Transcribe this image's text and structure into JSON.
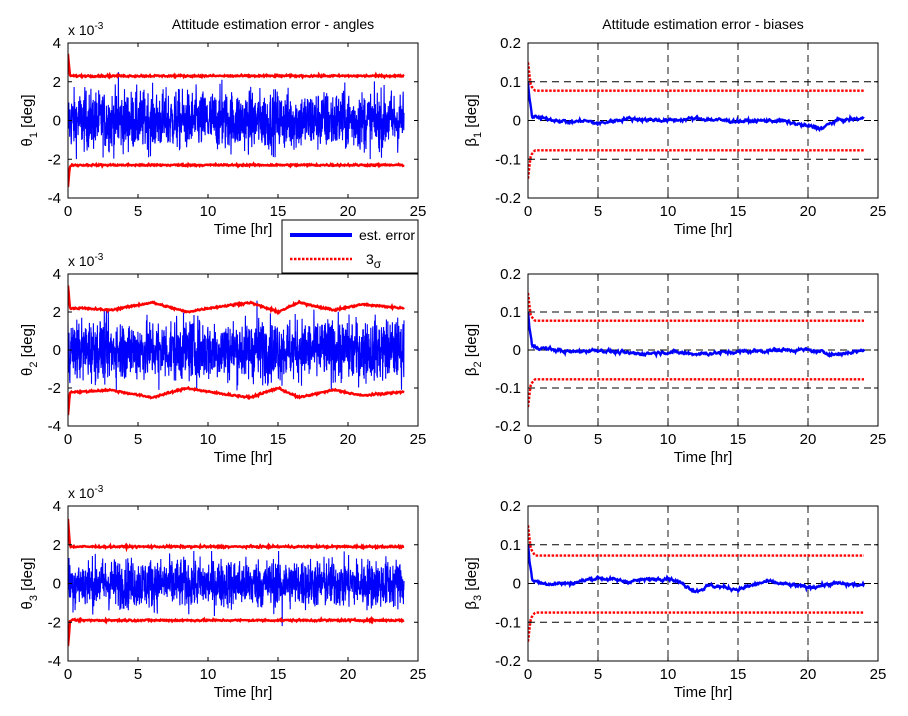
{
  "chart_data": [
    {
      "type": "line",
      "title": "Attitude estimation error - angles",
      "exponent": {
        "base": "x 10",
        "power": "-3"
      },
      "xlabel": "Time [hr]",
      "ylabel": {
        "symbol": "θ",
        "sub": "1",
        "unit": "[deg]"
      },
      "xlim": [
        0,
        25
      ],
      "ylim": [
        -4,
        4
      ],
      "xticks": [
        "0",
        "5",
        "10",
        "15",
        "20",
        "25"
      ],
      "yticks": [
        "-4",
        "-2",
        "0",
        "2",
        "4"
      ],
      "grid": false,
      "legend": "between top and middle rows",
      "series": [
        {
          "name": "est. error",
          "color": "#0000ff",
          "style": "noise",
          "x_range": [
            0,
            24
          ],
          "center": 0,
          "amplitude": 1.8,
          "spikes": [
            [
              3.6,
              2.5
            ],
            [
              11.0,
              2.1
            ]
          ]
        },
        {
          "name": "3σ",
          "color": "#ff0000",
          "style": "bound",
          "x": [
            0,
            0.15,
            1,
            5,
            10,
            15,
            20,
            24
          ],
          "upper": [
            3.4,
            2.3,
            2.3,
            2.3,
            2.3,
            2.3,
            2.3,
            2.3
          ],
          "lower": [
            -3.4,
            -2.3,
            -2.3,
            -2.3,
            -2.3,
            -2.3,
            -2.3,
            -2.3
          ]
        }
      ]
    },
    {
      "type": "line",
      "title": "Attitude estimation error - biases",
      "xlabel": "Time [hr]",
      "ylabel": {
        "symbol": "β",
        "sub": "1",
        "unit": "[deg]"
      },
      "xlim": [
        0,
        25
      ],
      "ylim": [
        -0.2,
        0.2
      ],
      "xticks": [
        "0",
        "5",
        "10",
        "15",
        "20",
        "25"
      ],
      "yticks": [
        "-0.2",
        "-0.1",
        "0",
        "0.1",
        "0.2"
      ],
      "grid": true,
      "series": [
        {
          "name": "est. error",
          "color": "#0000ff",
          "style": "walk",
          "x": [
            0,
            0.1,
            0.3,
            1,
            2,
            3,
            4,
            5,
            7,
            10,
            12,
            15,
            18,
            20,
            21,
            22,
            24
          ],
          "y": [
            0.1,
            0.06,
            0.01,
            0.005,
            0.002,
            -0.005,
            0.0,
            -0.008,
            0.005,
            0.0,
            0.005,
            -0.002,
            0.0,
            -0.015,
            -0.02,
            0.0,
            0.005
          ]
        },
        {
          "name": "3σ",
          "color": "#ff0000",
          "style": "bound",
          "x": [
            0,
            0.2,
            0.5,
            24
          ],
          "upper": [
            0.15,
            0.09,
            0.077,
            0.077
          ],
          "lower": [
            -0.15,
            -0.09,
            -0.077,
            -0.077
          ]
        }
      ]
    },
    {
      "type": "line",
      "exponent": {
        "base": "x 10",
        "power": "-3"
      },
      "xlabel": "Time [hr]",
      "ylabel": {
        "symbol": "θ",
        "sub": "2",
        "unit": "[deg]"
      },
      "xlim": [
        0,
        25
      ],
      "ylim": [
        -4,
        4
      ],
      "xticks": [
        "0",
        "5",
        "10",
        "15",
        "20",
        "25"
      ],
      "yticks": [
        "-4",
        "-2",
        "0",
        "2",
        "4"
      ],
      "grid": false,
      "series": [
        {
          "name": "est. error",
          "color": "#0000ff",
          "style": "noise",
          "x_range": [
            0,
            24
          ],
          "center": 0,
          "amplitude": 1.9,
          "spikes": [
            [
              13.5,
              2.6
            ],
            [
              6.5,
              -2.1
            ]
          ]
        },
        {
          "name": "3σ",
          "color": "#ff0000",
          "style": "bound",
          "x": [
            0,
            0.15,
            1,
            3,
            6,
            8.5,
            10,
            13,
            15,
            16.5,
            19,
            21,
            24
          ],
          "upper": [
            3.4,
            2.2,
            2.2,
            2.1,
            2.5,
            2.0,
            2.2,
            2.5,
            2.0,
            2.5,
            2.1,
            2.4,
            2.2
          ],
          "lower": [
            -3.4,
            -2.2,
            -2.2,
            -2.1,
            -2.5,
            -2.0,
            -2.2,
            -2.5,
            -2.0,
            -2.5,
            -2.1,
            -2.4,
            -2.2
          ]
        }
      ]
    },
    {
      "type": "line",
      "xlabel": "Time [hr]",
      "ylabel": {
        "symbol": "β",
        "sub": "2",
        "unit": "[deg]"
      },
      "xlim": [
        0,
        25
      ],
      "ylim": [
        -0.2,
        0.2
      ],
      "xticks": [
        "0",
        "5",
        "10",
        "15",
        "20",
        "25"
      ],
      "yticks": [
        "-0.2",
        "-0.1",
        "0",
        "0.1",
        "0.2"
      ],
      "grid": true,
      "series": [
        {
          "name": "est. error",
          "color": "#0000ff",
          "style": "walk",
          "x": [
            0,
            0.1,
            0.3,
            1,
            3,
            5,
            7,
            8,
            10,
            12,
            15,
            18,
            20,
            22,
            24
          ],
          "y": [
            0.1,
            0.06,
            0.01,
            0.005,
            -0.005,
            0.0,
            -0.008,
            -0.01,
            -0.005,
            -0.01,
            -0.005,
            0.0,
            0.0,
            -0.012,
            0.0
          ]
        },
        {
          "name": "3σ",
          "color": "#ff0000",
          "style": "bound",
          "x": [
            0,
            0.2,
            0.5,
            24
          ],
          "upper": [
            0.15,
            0.09,
            0.077,
            0.077
          ],
          "lower": [
            -0.15,
            -0.09,
            -0.077,
            -0.077
          ]
        }
      ]
    },
    {
      "type": "line",
      "exponent": {
        "base": "x 10",
        "power": "-3"
      },
      "xlabel": "Time [hr]",
      "ylabel": {
        "symbol": "θ",
        "sub": "3",
        "unit": "[deg]"
      },
      "xlim": [
        0,
        25
      ],
      "ylim": [
        -4,
        4
      ],
      "xticks": [
        "0",
        "5",
        "10",
        "15",
        "20",
        "25"
      ],
      "yticks": [
        "-4",
        "-2",
        "0",
        "2",
        "4"
      ],
      "grid": false,
      "series": [
        {
          "name": "est. error",
          "color": "#0000ff",
          "style": "noise",
          "x_range": [
            0,
            24
          ],
          "center": 0,
          "amplitude": 1.5,
          "spikes": [
            [
              15.3,
              -2.2
            ]
          ]
        },
        {
          "name": "3σ",
          "color": "#ff0000",
          "style": "bound",
          "x": [
            0,
            0.15,
            1,
            5,
            10,
            15,
            20,
            24
          ],
          "upper": [
            3.3,
            1.9,
            1.9,
            1.9,
            1.9,
            1.9,
            1.9,
            1.9
          ],
          "lower": [
            -3.3,
            -1.9,
            -1.9,
            -1.9,
            -1.9,
            -1.9,
            -1.9,
            -1.9
          ]
        }
      ]
    },
    {
      "type": "line",
      "xlabel": "Time [hr]",
      "ylabel": {
        "symbol": "β",
        "sub": "3",
        "unit": "[deg]"
      },
      "xlim": [
        0,
        25
      ],
      "ylim": [
        -0.2,
        0.2
      ],
      "xticks": [
        "0",
        "5",
        "10",
        "15",
        "20",
        "25"
      ],
      "yticks": [
        "-0.2",
        "-0.1",
        "0",
        "0.1",
        "0.2"
      ],
      "grid": true,
      "series": [
        {
          "name": "est. error",
          "color": "#0000ff",
          "style": "walk",
          "x": [
            0,
            0.1,
            0.3,
            1,
            3,
            5,
            7,
            10,
            11,
            12,
            13,
            15,
            17,
            20,
            22,
            24
          ],
          "y": [
            0.1,
            0.06,
            0.01,
            0.0,
            0.0,
            0.015,
            0.005,
            0.015,
            0.0,
            -0.02,
            -0.005,
            -0.015,
            0.005,
            -0.01,
            0.0,
            -0.005
          ]
        },
        {
          "name": "3σ",
          "color": "#ff0000",
          "style": "bound",
          "x": [
            0,
            0.2,
            0.5,
            24
          ],
          "upper": [
            0.15,
            0.09,
            0.072,
            0.072
          ],
          "lower": [
            -0.15,
            -0.09,
            -0.075,
            -0.075
          ]
        }
      ]
    }
  ],
  "legend": {
    "entries": [
      {
        "label": "est. error",
        "color": "#0000ff"
      },
      {
        "label": "3",
        "sym": "σ",
        "color": "#ff0000"
      }
    ]
  }
}
